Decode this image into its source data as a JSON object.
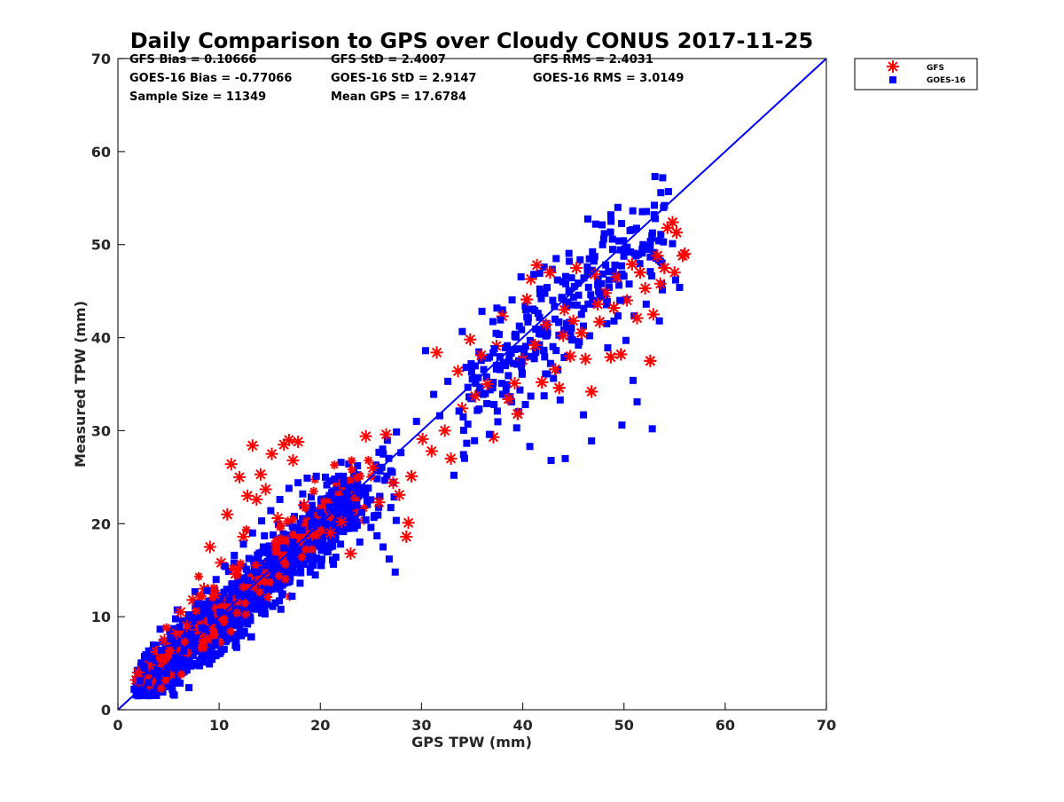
{
  "chart_data": {
    "type": "scatter",
    "title": "Daily Comparison to GPS over Cloudy CONUS 2017-11-25",
    "xlabel": "GPS TPW (mm)",
    "ylabel": "Measured TPW (mm)",
    "xlim": [
      0,
      70
    ],
    "ylim": [
      0,
      70
    ],
    "xticks": [
      "0",
      "10",
      "20",
      "30",
      "40",
      "50",
      "60",
      "70"
    ],
    "yticks": [
      "0",
      "10",
      "20",
      "30",
      "40",
      "50",
      "60",
      "70"
    ],
    "grid": false,
    "legend_position": "outside-top-right",
    "reference_line": {
      "x": [
        0,
        70
      ],
      "y": [
        0,
        70
      ],
      "color": "#0000ff"
    },
    "stats": [
      [
        "GFS Bias = 0.10666",
        "GFS StD = 2.4007",
        "GFS RMS = 2.4031"
      ],
      [
        "GOES-16 Bias = -0.77066",
        "GOES-16 StD = 2.9147",
        "GOES-16 RMS = 3.0149"
      ],
      [
        "Sample Size = 11349",
        "Mean GPS = 17.6784",
        ""
      ]
    ],
    "series": [
      {
        "name": "GFS",
        "marker": "asterisk",
        "color": "#ff0000",
        "points": [
          [
            1.8,
            3.2
          ],
          [
            2.0,
            4.0
          ],
          [
            2.4,
            3.0
          ],
          [
            3.1,
            4.8
          ],
          [
            3.8,
            6.2
          ],
          [
            4.6,
            7.5
          ],
          [
            5.0,
            6.0
          ],
          [
            5.8,
            8.2
          ],
          [
            6.2,
            10.5
          ],
          [
            6.8,
            9.0
          ],
          [
            7.4,
            11.8
          ],
          [
            8.0,
            8.6
          ],
          [
            8.5,
            13.0
          ],
          [
            9.1,
            17.5
          ],
          [
            9.6,
            12.4
          ],
          [
            10.2,
            15.8
          ],
          [
            10.8,
            21.0
          ],
          [
            11.2,
            26.4
          ],
          [
            11.6,
            14.6
          ],
          [
            12.0,
            25.0
          ],
          [
            12.4,
            18.6
          ],
          [
            12.8,
            23.0
          ],
          [
            13.3,
            28.4
          ],
          [
            13.7,
            22.6
          ],
          [
            14.1,
            25.3
          ],
          [
            14.6,
            23.7
          ],
          [
            15.2,
            27.5
          ],
          [
            15.8,
            20.6
          ],
          [
            16.4,
            28.5
          ],
          [
            16.9,
            29.0
          ],
          [
            17.3,
            26.8
          ],
          [
            17.8,
            28.8
          ],
          [
            18.4,
            22.0
          ],
          [
            19.2,
            18.8
          ],
          [
            20.2,
            21.6
          ],
          [
            21.0,
            19.0
          ],
          [
            22.1,
            20.2
          ],
          [
            23.0,
            16.8
          ],
          [
            23.8,
            21.4
          ],
          [
            24.5,
            29.4
          ],
          [
            25.2,
            26.0
          ],
          [
            25.8,
            22.3
          ],
          [
            26.5,
            29.6
          ],
          [
            27.2,
            24.4
          ],
          [
            27.8,
            23.1
          ],
          [
            28.5,
            18.6
          ],
          [
            28.7,
            20.1
          ],
          [
            29.0,
            25.1
          ],
          [
            30.1,
            29.1
          ],
          [
            31.0,
            27.8
          ],
          [
            31.5,
            38.4
          ],
          [
            32.3,
            30.0
          ],
          [
            32.9,
            27.0
          ],
          [
            33.6,
            36.4
          ],
          [
            34.0,
            32.4
          ],
          [
            34.8,
            39.8
          ],
          [
            35.3,
            33.7
          ],
          [
            35.9,
            38.1
          ],
          [
            36.5,
            35.0
          ],
          [
            37.1,
            29.3
          ],
          [
            37.4,
            39.1
          ],
          [
            38.0,
            42.3
          ],
          [
            38.6,
            33.4
          ],
          [
            39.2,
            35.1
          ],
          [
            39.5,
            31.8
          ],
          [
            40.0,
            37.6
          ],
          [
            40.4,
            44.1
          ],
          [
            40.8,
            46.3
          ],
          [
            41.2,
            39.2
          ],
          [
            41.4,
            47.8
          ],
          [
            41.9,
            35.2
          ],
          [
            42.3,
            41.4
          ],
          [
            42.7,
            47.0
          ],
          [
            43.2,
            36.6
          ],
          [
            43.6,
            34.6
          ],
          [
            44.1,
            43.0
          ],
          [
            44.7,
            38.0
          ],
          [
            45.3,
            47.5
          ],
          [
            45.8,
            40.5
          ],
          [
            46.2,
            37.7
          ],
          [
            46.8,
            34.2
          ],
          [
            47.1,
            46.8
          ],
          [
            47.6,
            41.7
          ],
          [
            48.2,
            44.8
          ],
          [
            48.7,
            37.9
          ],
          [
            49.3,
            46.5
          ],
          [
            49.7,
            38.2
          ],
          [
            50.3,
            44.0
          ],
          [
            50.8,
            47.9
          ],
          [
            51.3,
            42.1
          ],
          [
            51.6,
            47.0
          ],
          [
            52.1,
            45.3
          ],
          [
            52.6,
            37.5
          ],
          [
            52.9,
            42.5
          ],
          [
            53.3,
            48.8
          ],
          [
            53.6,
            45.8
          ],
          [
            54.0,
            47.5
          ],
          [
            54.3,
            51.8
          ],
          [
            54.8,
            52.4
          ],
          [
            55.0,
            47.0
          ],
          [
            55.2,
            51.3
          ],
          [
            55.8,
            48.8
          ],
          [
            56.0,
            49.0
          ],
          [
            45.0,
            41.8
          ],
          [
            47.4,
            43.6
          ],
          [
            44.0,
            40.2
          ],
          [
            49.0,
            43.2
          ]
        ]
      },
      {
        "name": "GOES-16",
        "marker": "square",
        "color": "#0000ff",
        "points": [
          [
            1.6,
            2.2
          ],
          [
            2.2,
            3.1
          ],
          [
            2.6,
            4.6
          ],
          [
            3.0,
            2.9
          ],
          [
            3.4,
            5.5
          ],
          [
            3.9,
            4.2
          ],
          [
            4.3,
            6.4
          ],
          [
            4.8,
            3.9
          ],
          [
            5.2,
            7.6
          ],
          [
            5.7,
            5.6
          ],
          [
            6.1,
            8.9
          ],
          [
            6.5,
            6.3
          ],
          [
            7.0,
            10.2
          ],
          [
            7.4,
            7.6
          ],
          [
            7.9,
            11.4
          ],
          [
            8.3,
            8.8
          ],
          [
            8.8,
            12.8
          ],
          [
            9.2,
            9.6
          ],
          [
            9.7,
            14.0
          ],
          [
            10.1,
            10.5
          ],
          [
            10.6,
            15.4
          ],
          [
            11.0,
            11.8
          ],
          [
            11.5,
            16.6
          ],
          [
            11.9,
            12.3
          ],
          [
            12.4,
            17.8
          ],
          [
            12.8,
            13.9
          ],
          [
            13.3,
            19.0
          ],
          [
            13.7,
            14.8
          ],
          [
            14.2,
            20.3
          ],
          [
            14.6,
            15.5
          ],
          [
            15.1,
            21.4
          ],
          [
            15.5,
            16.2
          ],
          [
            16.0,
            22.6
          ],
          [
            16.4,
            17.4
          ],
          [
            16.9,
            23.8
          ],
          [
            17.3,
            18.0
          ],
          [
            17.8,
            24.4
          ],
          [
            18.2,
            19.3
          ],
          [
            18.7,
            24.9
          ],
          [
            19.1,
            20.0
          ],
          [
            19.6,
            25.1
          ],
          [
            20.0,
            21.2
          ],
          [
            20.5,
            25.0
          ],
          [
            20.9,
            21.8
          ],
          [
            21.4,
            24.8
          ],
          [
            21.8,
            22.6
          ],
          [
            22.3,
            24.3
          ],
          [
            22.7,
            23.1
          ],
          [
            23.2,
            23.9
          ],
          [
            23.6,
            22.0
          ],
          [
            24.1,
            21.2
          ],
          [
            24.5,
            20.4
          ],
          [
            25.0,
            19.6
          ],
          [
            25.6,
            18.7
          ],
          [
            26.2,
            17.5
          ],
          [
            26.8,
            16.2
          ],
          [
            27.4,
            14.8
          ],
          [
            13.1,
            9.6
          ],
          [
            14.2,
            10.4
          ],
          [
            15.3,
            11.1
          ],
          [
            16.1,
            10.8
          ],
          [
            17.2,
            12.2
          ],
          [
            18.0,
            13.6
          ],
          [
            19.0,
            14.8
          ],
          [
            20.1,
            15.5
          ],
          [
            21.2,
            16.1
          ],
          [
            22.0,
            17.8
          ],
          [
            9.6,
            7.2
          ],
          [
            10.5,
            6.5
          ],
          [
            11.6,
            6.9
          ],
          [
            12.5,
            8.4
          ],
          [
            29.5,
            31.0
          ],
          [
            30.4,
            38.6
          ],
          [
            31.2,
            33.9
          ],
          [
            31.8,
            31.6
          ],
          [
            32.6,
            35.3
          ],
          [
            33.2,
            25.2
          ],
          [
            33.7,
            32.1
          ],
          [
            34.4,
            36.8
          ],
          [
            34.9,
            37.2
          ],
          [
            35.6,
            35.7
          ],
          [
            36.1,
            33.9
          ],
          [
            36.7,
            29.6
          ],
          [
            37.2,
            38.8
          ],
          [
            37.8,
            41.9
          ],
          [
            38.3,
            37.0
          ],
          [
            38.9,
            33.1
          ],
          [
            39.4,
            30.3
          ],
          [
            39.9,
            37.4
          ],
          [
            40.3,
            43.0
          ],
          [
            40.7,
            28.3
          ],
          [
            41.1,
            46.8
          ],
          [
            41.6,
            40.9
          ],
          [
            42.1,
            38.6
          ],
          [
            42.4,
            36.1
          ],
          [
            42.8,
            26.8
          ],
          [
            43.3,
            48.5
          ],
          [
            43.7,
            33.3
          ],
          [
            44.2,
            27.0
          ],
          [
            44.6,
            44.9
          ],
          [
            45.1,
            45.5
          ],
          [
            45.5,
            39.2
          ],
          [
            46.0,
            31.7
          ],
          [
            46.4,
            47.2
          ],
          [
            46.8,
            28.9
          ],
          [
            47.2,
            52.2
          ],
          [
            47.6,
            44.7
          ],
          [
            48.0,
            50.6
          ],
          [
            48.3,
            41.5
          ],
          [
            48.7,
            53.2
          ],
          [
            49.1,
            47.8
          ],
          [
            49.4,
            54.0
          ],
          [
            49.8,
            30.6
          ],
          [
            50.2,
            39.7
          ],
          [
            50.6,
            51.5
          ],
          [
            50.9,
            35.4
          ],
          [
            51.3,
            33.1
          ],
          [
            51.8,
            49.5
          ],
          [
            52.2,
            43.6
          ],
          [
            52.6,
            47.1
          ],
          [
            52.8,
            30.2
          ],
          [
            53.1,
            52.8
          ],
          [
            53.5,
            41.8
          ],
          [
            54.0,
            54.2
          ],
          [
            54.4,
            55.7
          ],
          [
            54.8,
            50.1
          ],
          [
            55.1,
            46.2
          ],
          [
            55.5,
            45.4
          ],
          [
            45.8,
            42.5
          ],
          [
            47.8,
            45.8
          ],
          [
            49.6,
            44.0
          ],
          [
            44.8,
            41.0
          ],
          [
            46.6,
            40.2
          ],
          [
            50.0,
            46.6
          ],
          [
            48.4,
            38.9
          ]
        ]
      }
    ]
  }
}
